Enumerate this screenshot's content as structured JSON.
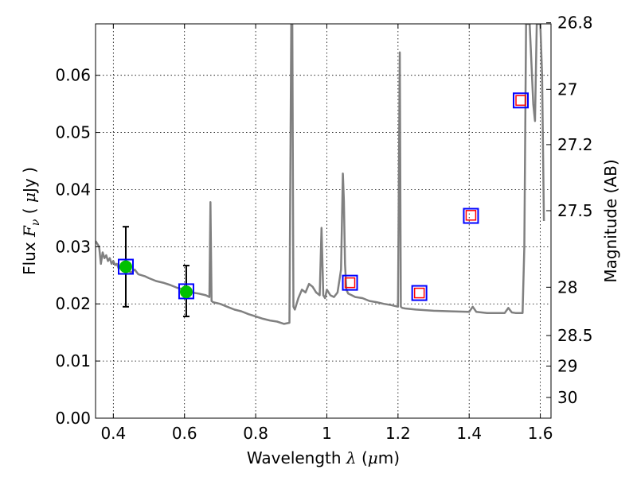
{
  "chart_data": {
    "type": "line",
    "xlabel_prefix": "Wavelength  ",
    "xlabel_lambda": "λ",
    "xlabel_unit_open": " (",
    "xlabel_mu": "μ",
    "xlabel_unit_close": "m)",
    "ylabel_prefix": "Flux  ",
    "ylabel_symbol": "F",
    "ylabel_subscript": "ν",
    "ylabel_unit_open": "  ( ",
    "ylabel_mu": "μ",
    "ylabel_unit_close": "Jy )",
    "y2label": "Magnitude (AB)",
    "xlim": [
      0.35,
      1.63
    ],
    "ylim": [
      0.0,
      0.069
    ],
    "grid": true,
    "x_ticks": [
      0.4,
      0.6,
      0.8,
      1.0,
      1.2,
      1.4,
      1.6
    ],
    "x_tick_labels": [
      "0.4",
      "0.6",
      "0.8",
      "1",
      "1.2",
      "1.4",
      "1.6"
    ],
    "y_ticks": [
      0.0,
      0.01,
      0.02,
      0.03,
      0.04,
      0.05,
      0.06
    ],
    "y_tick_labels": [
      "0.00",
      "0.01",
      "0.02",
      "0.03",
      "0.04",
      "0.05",
      "0.06"
    ],
    "y2_ticks": [
      26.8,
      27,
      27.2,
      27.5,
      28,
      28.5,
      29,
      30
    ],
    "y2_tick_labels": [
      "26.8",
      "27",
      "27.2",
      "27.5",
      "28",
      "28.5",
      "29",
      "30"
    ],
    "model_spectrum": {
      "color": "#808080",
      "x": [
        0.35,
        0.36,
        0.365,
        0.37,
        0.375,
        0.38,
        0.385,
        0.39,
        0.395,
        0.4,
        0.405,
        0.41,
        0.415,
        0.42,
        0.43,
        0.44,
        0.45,
        0.46,
        0.47,
        0.48,
        0.49,
        0.5,
        0.52,
        0.54,
        0.56,
        0.58,
        0.6,
        0.62,
        0.64,
        0.66,
        0.67,
        0.673,
        0.676,
        0.68,
        0.7,
        0.72,
        0.74,
        0.76,
        0.78,
        0.8,
        0.82,
        0.84,
        0.86,
        0.88,
        0.895,
        0.9,
        0.903,
        0.906,
        0.91,
        0.92,
        0.93,
        0.94,
        0.95,
        0.96,
        0.97,
        0.98,
        0.985,
        0.99,
        0.995,
        1.0,
        1.01,
        1.02,
        1.03,
        1.04,
        1.045,
        1.048,
        1.051,
        1.055,
        1.06,
        1.07,
        1.08,
        1.1,
        1.12,
        1.14,
        1.16,
        1.18,
        1.2,
        1.205,
        1.208,
        1.212,
        1.22,
        1.25,
        1.3,
        1.35,
        1.4,
        1.41,
        1.42,
        1.45,
        1.5,
        1.51,
        1.52,
        1.53,
        1.55,
        1.555,
        1.56,
        1.57,
        1.58,
        1.585,
        1.59,
        1.6,
        1.605,
        1.61
      ],
      "y": [
        0.031,
        0.03,
        0.027,
        0.029,
        0.028,
        0.0285,
        0.0275,
        0.028,
        0.027,
        0.0275,
        0.0268,
        0.027,
        0.0262,
        0.0265,
        0.026,
        0.0258,
        0.0255,
        0.026,
        0.0252,
        0.025,
        0.0248,
        0.0245,
        0.024,
        0.0237,
        0.0233,
        0.0228,
        0.0225,
        0.022,
        0.0218,
        0.0215,
        0.0212,
        0.0378,
        0.0205,
        0.0203,
        0.02,
        0.0195,
        0.019,
        0.0187,
        0.0182,
        0.0178,
        0.0174,
        0.0171,
        0.0169,
        0.0165,
        0.0167,
        0.069,
        0.069,
        0.0195,
        0.019,
        0.021,
        0.0225,
        0.022,
        0.0235,
        0.023,
        0.022,
        0.0215,
        0.0333,
        0.0215,
        0.021,
        0.0225,
        0.0215,
        0.0212,
        0.022,
        0.026,
        0.0428,
        0.038,
        0.027,
        0.0225,
        0.0218,
        0.0215,
        0.0212,
        0.021,
        0.0205,
        0.0203,
        0.02,
        0.0198,
        0.0195,
        0.064,
        0.0195,
        0.0193,
        0.0192,
        0.019,
        0.0188,
        0.0187,
        0.0186,
        0.0195,
        0.0186,
        0.0184,
        0.0184,
        0.0193,
        0.0185,
        0.0184,
        0.0184,
        0.03,
        0.069,
        0.069,
        0.055,
        0.052,
        0.069,
        0.069,
        0.06,
        0.0345
      ]
    },
    "observed": {
      "color": "#00c000",
      "x": [
        0.435,
        0.605
      ],
      "y": [
        0.0265,
        0.0221
      ],
      "yerr_low": [
        0.0195,
        0.0178
      ],
      "yerr_high": [
        0.0335,
        0.0267
      ]
    },
    "model_photometry": {
      "color": "#0000ff",
      "x": [
        0.435,
        0.605,
        1.065,
        1.26,
        1.405,
        1.545
      ],
      "y": [
        0.0265,
        0.0222,
        0.0237,
        0.0219,
        0.0354,
        0.0556
      ]
    },
    "predicted": {
      "color": "#ff0000",
      "x": [
        1.065,
        1.26,
        1.405,
        1.545
      ],
      "y": [
        0.0237,
        0.0219,
        0.0355,
        0.0556
      ]
    }
  }
}
